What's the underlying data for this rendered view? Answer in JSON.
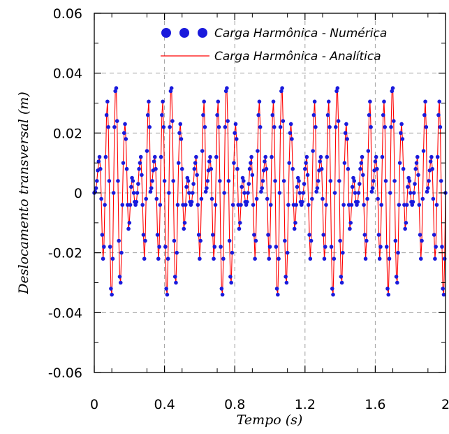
{
  "chart_data": {
    "type": "line",
    "title": "",
    "xlabel": "Tempo (s)",
    "ylabel": "Deslocamento transversal (m)",
    "xlim": [
      0,
      2
    ],
    "ylim": [
      -0.06,
      0.06
    ],
    "x_ticks": [
      0,
      0.4,
      0.8,
      1.2,
      1.6,
      2
    ],
    "x_tick_labels": [
      "0",
      "0.4",
      "0.8",
      "1.2",
      "1.6",
      "2"
    ],
    "y_ticks": [
      0.06,
      0.04,
      0.02,
      0,
      -0.02,
      -0.04,
      -0.06
    ],
    "y_tick_labels": [
      "0.06",
      "0.04",
      "0.02",
      "0",
      "-0.02",
      "-0.04",
      "-0.06"
    ],
    "grid": true,
    "legend_position": "top-right",
    "series": [
      {
        "name": "Carga Harmônica - Numérica",
        "style": "markers",
        "color": "#1a1adc",
        "x": [
          0,
          0.005,
          0.01,
          0.015,
          0.02,
          0.025,
          0.03,
          0.035,
          0.04,
          0.045,
          0.05,
          0.055,
          0.06,
          0.065,
          0.07,
          0.075,
          0.08,
          0.085,
          0.09,
          0.095,
          0.1,
          0.105,
          0.11,
          0.115,
          0.12,
          0.125,
          0.13,
          0.135,
          0.14,
          0.145,
          0.15,
          0.155,
          0.16,
          0.165,
          0.17,
          0.175,
          0.18,
          0.185,
          0.19,
          0.195,
          0.2,
          0.205,
          0.21,
          0.215,
          0.22,
          0.225,
          0.23,
          0.235,
          0.24,
          0.245,
          0.25,
          0.255,
          0.26,
          0.265,
          0.27,
          0.275,
          0.28,
          0.285,
          0.29,
          0.295,
          0.3,
          0.305,
          0.31,
          0.315
        ],
        "y": [
          0,
          0.0004,
          0.0016,
          0.004,
          0.0075,
          0.0105,
          0.012,
          0.008,
          -0.002,
          -0.014,
          -0.022,
          -0.018,
          -0.004,
          0.012,
          0.026,
          0.0305,
          0.022,
          0.004,
          -0.018,
          -0.032,
          -0.034,
          -0.022,
          0.0,
          0.022,
          0.034,
          0.035,
          0.024,
          0.004,
          -0.016,
          -0.028,
          -0.03,
          -0.02,
          -0.004,
          0.01,
          0.02,
          0.023,
          0.018,
          0.008,
          -0.004,
          -0.012,
          -0.01,
          -0.004,
          0.002,
          0.005,
          0.004,
          0.0,
          -0.003,
          -0.004,
          -0.003,
          0.0,
          0.003,
          0.008,
          0.01,
          0.012,
          0.006,
          -0.004,
          -0.014,
          -0.022,
          -0.016,
          -0.002,
          0.014,
          0.026,
          0.0305,
          0.022
        ]
      },
      {
        "name": "Carga Harmônica - Analítica",
        "style": "line",
        "color": "#ff0000",
        "x": [
          0,
          0.005,
          0.01,
          0.015,
          0.02,
          0.025,
          0.03,
          0.035,
          0.04,
          0.045,
          0.05,
          0.055,
          0.06,
          0.065,
          0.07,
          0.075,
          0.08,
          0.085,
          0.09,
          0.095,
          0.1,
          0.105,
          0.11,
          0.115,
          0.12,
          0.125,
          0.13,
          0.135,
          0.14,
          0.145,
          0.15,
          0.155,
          0.16,
          0.165,
          0.17,
          0.175,
          0.18,
          0.185,
          0.19,
          0.195,
          0.2,
          0.205,
          0.21,
          0.215,
          0.22,
          0.225,
          0.23,
          0.235,
          0.24,
          0.245,
          0.25,
          0.255,
          0.26,
          0.265,
          0.27,
          0.275,
          0.28,
          0.285,
          0.29,
          0.295,
          0.3,
          0.305,
          0.31,
          0.315
        ],
        "y": [
          0,
          0.0004,
          0.0016,
          0.004,
          0.0075,
          0.0105,
          0.012,
          0.008,
          -0.002,
          -0.014,
          -0.022,
          -0.018,
          -0.004,
          0.012,
          0.026,
          0.0305,
          0.022,
          0.004,
          -0.018,
          -0.032,
          -0.034,
          -0.022,
          0.0,
          0.022,
          0.034,
          0.035,
          0.024,
          0.004,
          -0.016,
          -0.028,
          -0.03,
          -0.02,
          -0.004,
          0.01,
          0.02,
          0.023,
          0.018,
          0.008,
          -0.004,
          -0.012,
          -0.01,
          -0.004,
          0.002,
          0.005,
          0.004,
          0.0,
          -0.003,
          -0.004,
          -0.003,
          0.0,
          0.003,
          0.008,
          0.01,
          0.012,
          0.006,
          -0.004,
          -0.014,
          -0.022,
          -0.016,
          -0.002,
          0.014,
          0.026,
          0.0305,
          0.022
        ]
      }
    ]
  }
}
